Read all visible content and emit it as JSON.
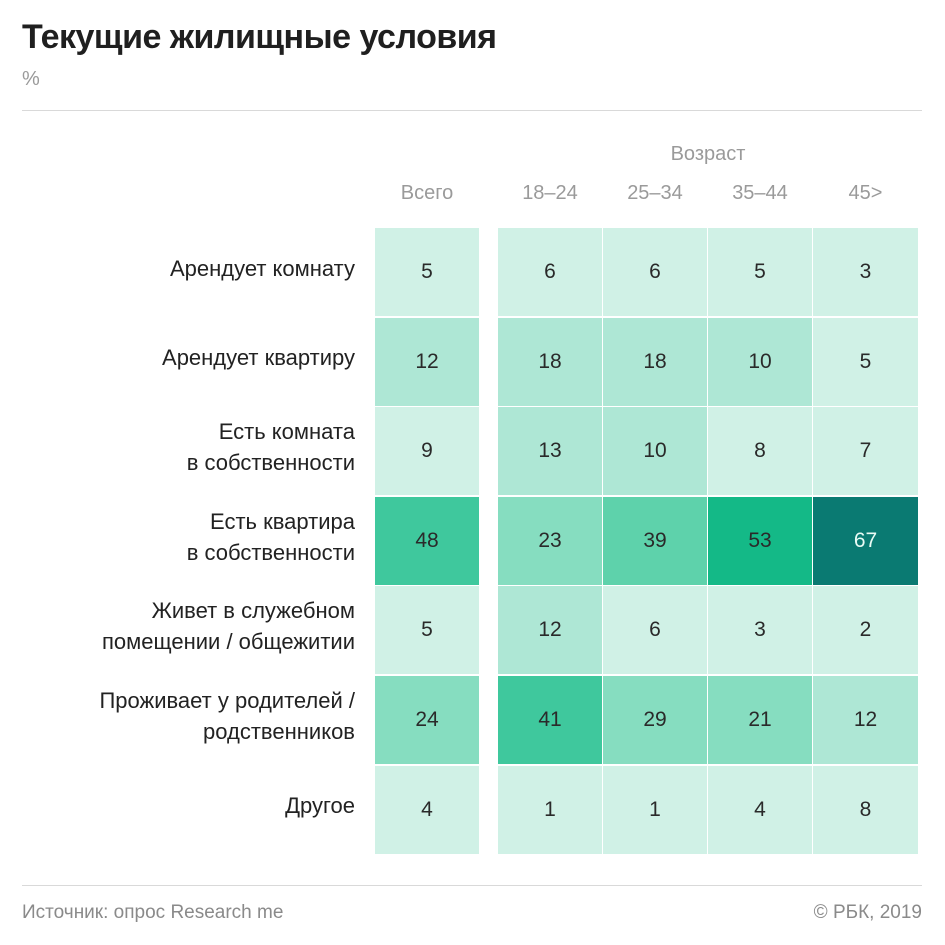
{
  "title": "Текущие жилищные условия",
  "unit": "%",
  "group_header": "Возраст",
  "footer": {
    "source": "Источник: опрос Research me",
    "copyright": "© РБК, 2019"
  },
  "chart_data": {
    "type": "heatmap",
    "title": "Текущие жилищные условия",
    "unit": "%",
    "column_group": "Возраст",
    "columns": [
      "Всего",
      "18–24",
      "25–34",
      "35–44",
      "45>"
    ],
    "rows": [
      "Арендует комнату",
      "Арендует квартиру",
      "Есть комната\nв собственности",
      "Есть квартира\nв собственности",
      "Живет в служебном\nпомещении / общежитии",
      "Проживает у родителей /\nродственников",
      "Другое"
    ],
    "values": [
      [
        5,
        6,
        6,
        5,
        3
      ],
      [
        12,
        18,
        18,
        10,
        5
      ],
      [
        9,
        13,
        10,
        8,
        7
      ],
      [
        48,
        23,
        39,
        53,
        67
      ],
      [
        5,
        12,
        6,
        3,
        2
      ],
      [
        24,
        41,
        29,
        21,
        12
      ],
      [
        4,
        1,
        1,
        4,
        8
      ]
    ]
  }
}
